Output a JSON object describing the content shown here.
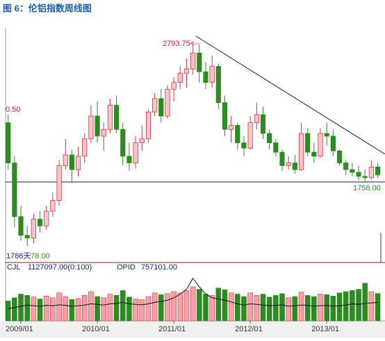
{
  "chart_data": {
    "type": "candlestick",
    "title": "图 6：伦铝指数周线图",
    "categories": [
      null,
      null,
      "2009/01",
      null,
      null,
      null,
      null,
      null,
      null,
      null,
      null,
      null,
      null,
      null,
      "2010/01",
      null,
      null,
      null,
      null,
      null,
      null,
      null,
      null,
      null,
      null,
      null,
      "2011/01",
      null,
      null,
      null,
      null,
      null,
      null,
      null,
      null,
      null,
      null,
      null,
      "2012/01",
      null,
      null,
      null,
      null,
      null,
      null,
      null,
      null,
      null,
      null,
      null,
      "2013/01",
      null,
      null,
      null,
      null,
      null,
      null,
      null,
      null
    ],
    "open": [
      2200,
      1900,
      1500,
      1360,
      1340,
      1480,
      1430,
      1540,
      1620,
      1880,
      1960,
      1850,
      1950,
      2080,
      2250,
      2100,
      2150,
      2330,
      2150,
      1950,
      1900,
      2050,
      2080,
      2280,
      2380,
      2250,
      2450,
      2500,
      2570,
      2600,
      2720,
      2580,
      2500,
      2620,
      2350,
      2150,
      2180,
      2050,
      2010,
      2200,
      2260,
      2120,
      2050,
      1980,
      1880,
      1900,
      1850,
      2120,
      1980,
      1950,
      2120,
      2100,
      1990,
      1900,
      1850,
      1830,
      1800,
      1790,
      1870
    ],
    "high": [
      2260,
      1950,
      1580,
      1430,
      1520,
      1540,
      1580,
      1680,
      1920,
      2080,
      2000,
      2020,
      2120,
      2330,
      2360,
      2200,
      2380,
      2400,
      2200,
      2050,
      2100,
      2180,
      2300,
      2420,
      2450,
      2480,
      2540,
      2620,
      2680,
      2793.75,
      2780,
      2650,
      2700,
      2640,
      2400,
      2250,
      2200,
      2100,
      2250,
      2350,
      2320,
      2150,
      2080,
      2000,
      1950,
      1960,
      2200,
      2160,
      2050,
      2160,
      2200,
      2150,
      2000,
      1920,
      1900,
      1880,
      1850,
      1920,
      1900
    ],
    "low": [
      1850,
      1420,
      1320,
      1278,
      1300,
      1380,
      1400,
      1500,
      1580,
      1850,
      1750,
      1800,
      1900,
      2050,
      2050,
      1990,
      2120,
      2120,
      1880,
      1840,
      1860,
      1990,
      2050,
      2250,
      2200,
      2230,
      2360,
      2450,
      2460,
      2560,
      2500,
      2450,
      2460,
      2300,
      2100,
      2050,
      2000,
      1950,
      2000,
      2150,
      2080,
      2000,
      1950,
      1840,
      1850,
      1820,
      1840,
      1950,
      1900,
      1940,
      2030,
      1950,
      1880,
      1810,
      1800,
      1770,
      1758,
      1780,
      1790
    ],
    "close": [
      1900,
      1500,
      1360,
      1340,
      1480,
      1430,
      1540,
      1620,
      1880,
      1960,
      1850,
      1950,
      2080,
      2250,
      2100,
      2150,
      2330,
      2150,
      1950,
      1900,
      2050,
      2080,
      2280,
      2380,
      2250,
      2450,
      2500,
      2570,
      2600,
      2720,
      2580,
      2500,
      2620,
      2350,
      2150,
      2180,
      2050,
      2010,
      2200,
      2260,
      2120,
      2050,
      1980,
      1880,
      1900,
      1850,
      2120,
      1980,
      1950,
      2120,
      2100,
      1990,
      1900,
      1850,
      1830,
      1800,
      1790,
      1870,
      1810
    ],
    "up_color": "#e0303a",
    "down_color": "#2e8b22",
    "ylim": [
      1157,
      2908
    ],
    "peak": {
      "value": 2793.75,
      "label": "2793.75<--"
    },
    "support": {
      "value": 1758,
      "label": "1758.00"
    },
    "annotations": [
      "0.50",
      "1786天",
      "78.00"
    ],
    "volume": {
      "name": "CJL",
      "label": "1127097.00(0:100)",
      "ylim": [
        0,
        2000000
      ],
      "values": [
        820000,
        950000,
        1100000,
        1050000,
        980000,
        900000,
        1020000,
        950000,
        1150000,
        1000000,
        880000,
        920000,
        1050000,
        1200000,
        1000000,
        950000,
        1100000,
        1050000,
        1250000,
        980000,
        900000,
        870000,
        1000000,
        1150000,
        1080000,
        1120000,
        1200000,
        1150000,
        1250000,
        1400000,
        1300000,
        1100000,
        1050000,
        1350000,
        1280000,
        1150000,
        1100000,
        1000000,
        1150000,
        1050000,
        1100000,
        980000,
        1050000,
        1120000,
        950000,
        1000000,
        1180000,
        1050000,
        1000000,
        1100000,
        1080000,
        1020000,
        1150000,
        1200000,
        1250000,
        1300000,
        1550000,
        1200000,
        1127097
      ]
    },
    "opid": {
      "name": "OPID",
      "label": "757101.00",
      "values": [
        500000,
        550000,
        600000,
        650000,
        620000,
        600000,
        640000,
        620000,
        660000,
        640000,
        600000,
        620000,
        650000,
        700000,
        680000,
        650000,
        700000,
        720000,
        760000,
        700000,
        680000,
        660000,
        700000,
        760000,
        800000,
        850000,
        950000,
        1100000,
        1300000,
        1750000,
        1400000,
        1100000,
        950000,
        900000,
        850000,
        780000,
        700000,
        650000,
        700000,
        680000,
        650000,
        620000,
        640000,
        660000,
        600000,
        620000,
        650000,
        640000,
        600000,
        620000,
        640000,
        600000,
        620000,
        650000,
        700000,
        680000,
        720000,
        740000,
        757101
      ]
    }
  }
}
